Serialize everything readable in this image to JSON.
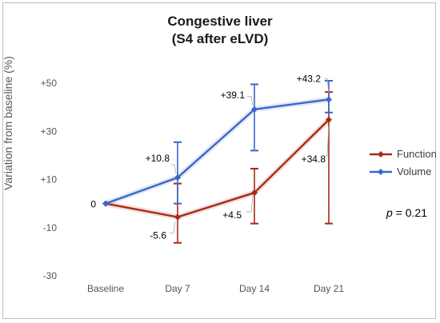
{
  "chart_data": {
    "type": "line",
    "title": [
      "Congestive liver",
      "(S4 after eLVD)"
    ],
    "ylabel": "Variation from baseline (%)",
    "xlabel": "",
    "categories": [
      "Baseline",
      "Day 7",
      "Day 14",
      "Day 21"
    ],
    "ylim": [
      -30,
      50
    ],
    "yticks": [
      -30,
      -10,
      10,
      30,
      50
    ],
    "ytick_labels": [
      "-30",
      "-10",
      "+10",
      "+30",
      "+50"
    ],
    "grid": false,
    "legend_position": "right",
    "series": [
      {
        "name": "Function",
        "color": "#a52a16",
        "values": [
          0,
          -5.6,
          4.5,
          34.8
        ],
        "err_high": [
          0,
          8.3,
          14.5,
          46.3
        ],
        "err_low": [
          0,
          -16.3,
          -8.3,
          -8.3
        ],
        "labels": [
          "0",
          "-5.6",
          "+4.5",
          "+34.8"
        ]
      },
      {
        "name": "Volume",
        "color": "#3a66cc",
        "values": [
          0,
          10.8,
          39.1,
          43.2
        ],
        "err_high": [
          0,
          25.5,
          49.5,
          51.0
        ],
        "err_low": [
          0,
          0,
          22.0,
          37.8
        ],
        "labels": [
          "",
          "+10.8",
          "+39.1",
          "+43.2"
        ]
      }
    ],
    "annotation": {
      "p_prefix": "p",
      "p_suffix": " = 0.21"
    }
  }
}
